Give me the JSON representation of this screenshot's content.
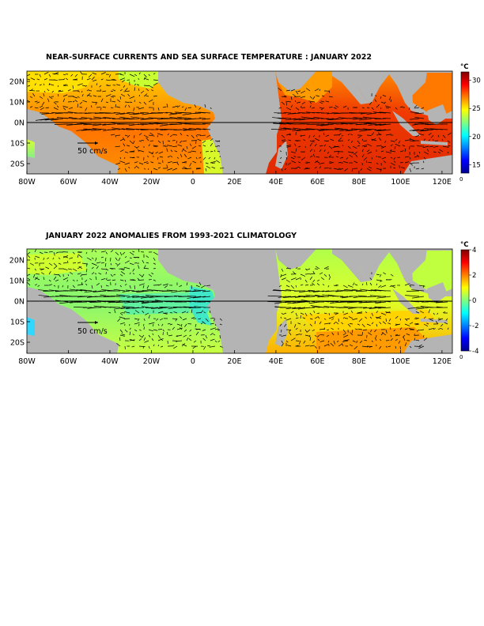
{
  "panels": [
    {
      "id": "sst",
      "title": "NEAR-SURFACE CURRENTS AND SEA SURFACE TEMPERATURE : JANUARY 2022",
      "colorbar": {
        "unit": "°C",
        "ticks": [
          "30",
          "25",
          "20",
          "15"
        ],
        "tick_values": [
          30,
          25,
          20,
          15
        ],
        "range": [
          13.5,
          31.5
        ],
        "below_label": "0",
        "colormap": "jet"
      },
      "scale_arrow_label": "50 cm/s"
    },
    {
      "id": "anomaly",
      "title": "JANUARY 2022 ANOMALIES FROM 1993-2021 CLIMATOLOGY",
      "colorbar": {
        "unit": "°C",
        "ticks": [
          "4",
          "2",
          "0",
          "-2",
          "-4"
        ],
        "tick_values": [
          4,
          2,
          0,
          -2,
          -4
        ],
        "range": [
          -4,
          4
        ],
        "below_label": "0",
        "colormap": "jet"
      },
      "scale_arrow_label": "50 cm/s"
    }
  ],
  "map_extent": {
    "lon": [
      -80,
      125
    ],
    "lat": [
      -25,
      25
    ]
  },
  "x_ticks": [
    "80W",
    "60W",
    "40W",
    "20W",
    "0",
    "20E",
    "40E",
    "60E",
    "80E",
    "100E",
    "120E"
  ],
  "x_tick_lons": [
    -80,
    -60,
    -40,
    -20,
    0,
    20,
    40,
    60,
    80,
    100,
    120
  ],
  "y_ticks": [
    "20N",
    "10N",
    "0N",
    "10S",
    "20S"
  ],
  "y_tick_lats": [
    20,
    10,
    0,
    -10,
    -20
  ],
  "colors": {
    "land": "#b4b4b4",
    "frame": "#000000"
  }
}
